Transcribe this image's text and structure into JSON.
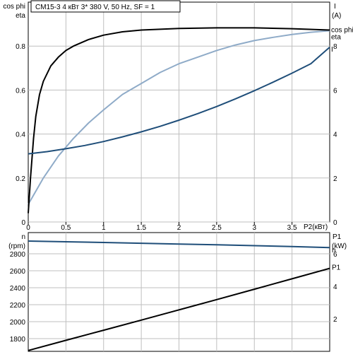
{
  "header_text": "CM15-3    4 кВт   3* 380 V, 50 Hz, SF = 1",
  "top_left_axis_labels": [
    "cos phi",
    "eta"
  ],
  "top_right_axis_labels": [
    "I",
    "(A)"
  ],
  "bottom_left_axis_labels": [
    "n",
    "(rpm)"
  ],
  "bottom_right_axis_labels": [
    "P1",
    "(kW)"
  ],
  "x_axis_label": "P2(кВт)",
  "colors": {
    "cos_phi": "#8fabc8",
    "eta": "#000000",
    "I": "#1f4e79",
    "n": "#1f4e79",
    "P1": "#000000",
    "grid": "#bfbfbf"
  },
  "chart_data": [
    {
      "type": "line",
      "x_ticks": [
        "0",
        "0.5",
        "1",
        "1.5",
        "2",
        "2.5",
        "3",
        "3.5"
      ],
      "xlim": [
        0,
        4
      ],
      "ylim": [
        0,
        1
      ],
      "y_ticks": [
        "0",
        "0.2",
        "0.4",
        "0.6",
        "0.8"
      ],
      "y2lim": [
        0,
        10
      ],
      "y2_ticks": [
        "0",
        "2",
        "4",
        "6",
        "8"
      ],
      "series": [
        {
          "name": "cos phi",
          "axis": "left",
          "x": [
            0,
            0.1,
            0.2,
            0.3,
            0.4,
            0.6,
            0.8,
            1.0,
            1.25,
            1.5,
            1.75,
            2.0,
            2.25,
            2.5,
            2.75,
            3.0,
            3.25,
            3.5,
            3.75,
            4.0
          ],
          "y": [
            0.08,
            0.14,
            0.2,
            0.25,
            0.3,
            0.38,
            0.45,
            0.51,
            0.58,
            0.63,
            0.68,
            0.72,
            0.75,
            0.78,
            0.805,
            0.825,
            0.84,
            0.853,
            0.863,
            0.87
          ]
        },
        {
          "name": "eta",
          "axis": "left",
          "x": [
            0,
            0.03,
            0.07,
            0.1,
            0.15,
            0.2,
            0.3,
            0.4,
            0.5,
            0.6,
            0.8,
            1.0,
            1.25,
            1.5,
            2.0,
            2.5,
            3.0,
            3.5,
            4.0
          ],
          "y": [
            0.04,
            0.2,
            0.38,
            0.48,
            0.58,
            0.64,
            0.71,
            0.75,
            0.78,
            0.8,
            0.83,
            0.85,
            0.865,
            0.873,
            0.88,
            0.883,
            0.883,
            0.879,
            0.873
          ]
        },
        {
          "name": "I",
          "axis": "right",
          "x": [
            0,
            0.25,
            0.5,
            0.75,
            1.0,
            1.25,
            1.5,
            1.75,
            2.0,
            2.25,
            2.5,
            2.75,
            3.0,
            3.25,
            3.5,
            3.75,
            4.0
          ],
          "y": [
            3.1,
            3.2,
            3.33,
            3.48,
            3.66,
            3.87,
            4.1,
            4.35,
            4.63,
            4.93,
            5.25,
            5.6,
            5.97,
            6.36,
            6.77,
            7.2,
            7.95
          ]
        }
      ]
    },
    {
      "type": "line",
      "xlim": [
        0,
        4
      ],
      "ylim": [
        1650,
        3050
      ],
      "y_ticks": [
        "1800",
        "2000",
        "2200",
        "2400",
        "2600",
        "2800"
      ],
      "y2lim": [
        0,
        7.3
      ],
      "y2_ticks": [
        "2",
        "4",
        "6"
      ],
      "series": [
        {
          "name": "n",
          "axis": "left",
          "x": [
            0,
            0.5,
            1.0,
            1.5,
            2.0,
            2.5,
            3.0,
            3.5,
            4.0
          ],
          "y": [
            2950,
            2942,
            2933,
            2924,
            2915,
            2906,
            2896,
            2886,
            2873
          ]
        },
        {
          "name": "P1",
          "axis": "right",
          "x": [
            0,
            0.5,
            1.0,
            1.5,
            2.0,
            2.5,
            3.0,
            3.5,
            4.0
          ],
          "y": [
            0.05,
            0.68,
            1.3,
            1.92,
            2.55,
            3.18,
            3.82,
            4.46,
            5.1
          ]
        }
      ]
    }
  ]
}
